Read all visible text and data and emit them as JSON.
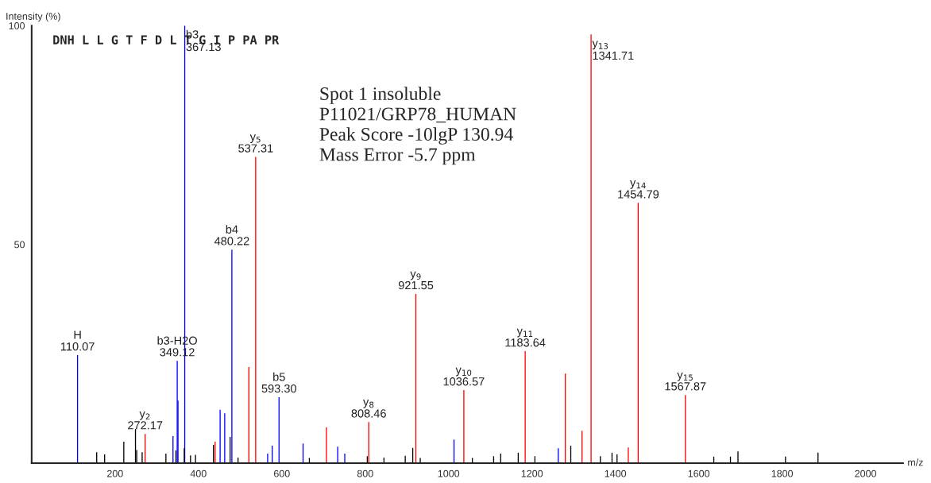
{
  "chart_data": {
    "type": "bar",
    "ylabel": "Intensity (%)",
    "xlabel": "m/z",
    "xlim": [
      0,
      2090
    ],
    "ylim": [
      0,
      100
    ],
    "xticks": [
      200,
      400,
      600,
      800,
      1000,
      1200,
      1400,
      1600,
      1800,
      2000
    ],
    "yticks": [
      50,
      100
    ],
    "grid": false,
    "legend": false,
    "series": [
      {
        "color": "#0000ff",
        "x": [
          110.07,
          339,
          349.12,
          351,
          367.13,
          452,
          463,
          480.22,
          566,
          577,
          593.3,
          651,
          734,
          751,
          1013,
          1263
        ],
        "values": [
          24.7,
          6.2,
          23.4,
          14.3,
          100,
          12.2,
          11.4,
          48.8,
          2.2,
          4,
          15.1,
          4.5,
          3.8,
          2.2,
          5.4,
          3.4
        ]
      },
      {
        "color": "#ff0000",
        "x": [
          272.17,
          440,
          521,
          537.31,
          707,
          808.46,
          921.55,
          1036.57,
          1183.64,
          1280,
          1320,
          1341.71,
          1431,
          1454.79,
          1567.87
        ],
        "values": [
          6.7,
          4.9,
          22,
          70,
          8.2,
          9.4,
          38.7,
          16.7,
          25.6,
          20.5,
          7.4,
          98,
          3.6,
          59.5,
          15.6
        ]
      },
      {
        "color": "#000000",
        "x": [
          156,
          175,
          221,
          249,
          252,
          265,
          322,
          346,
          366,
          381,
          393,
          436,
          476,
          495,
          666,
          805,
          845,
          896,
          914,
          932,
          1057,
          1108,
          1125,
          1167,
          1207,
          1293,
          1364,
          1392,
          1404,
          1636,
          1676,
          1694,
          1808,
          1886
        ],
        "values": [
          2.5,
          2,
          4.9,
          7.8,
          3,
          2.5,
          2.2,
          2.9,
          3.4,
          1.8,
          1.9,
          4.2,
          6,
          1.3,
          1.2,
          1.6,
          1.3,
          1.7,
          3.5,
          1.2,
          1.2,
          1.6,
          2.2,
          2.4,
          1.6,
          4,
          1.6,
          2.4,
          2,
          1.5,
          1.5,
          2.7,
          1.5,
          2.4
        ]
      }
    ],
    "annotations": [
      "DNH L L G T F D L T G I P PA PR",
      "Spot 1 insoluble\nP11021/GRP78_HUMAN\nPeak Score -10lgP 130.94\nMass Error -5.7 ppm",
      {
        "text": "H\n110.07",
        "x": 110.07,
        "y": 24.7
      },
      {
        "text": "y$_{2}$\n272.17",
        "x": 272.17,
        "y": 6.7
      },
      {
        "text": "b3-H2O\n349.12",
        "x": 349.12,
        "y": 23.4
      },
      {
        "text": "b3\n367.13",
        "x": 367.13,
        "y": 100
      },
      {
        "text": "b4\n480.22",
        "x": 480.22,
        "y": 48.8
      },
      {
        "text": "y$_{5}$\n537.31",
        "x": 537.31,
        "y": 70
      },
      {
        "text": "b5\n593.30",
        "x": 593.3,
        "y": 15.1
      },
      {
        "text": "y$_{8}$\n808.46",
        "x": 808.46,
        "y": 9.4
      },
      {
        "text": "y$_{9}$\n921.55",
        "x": 921.55,
        "y": 38.7
      },
      {
        "text": "y$_{10}$\n1036.57",
        "x": 1036.57,
        "y": 16.7
      },
      {
        "text": "y$_{11}$\n1183.64",
        "x": 1183.64,
        "y": 25.6
      },
      {
        "text": "y$_{13}$\n1341.71",
        "x": 1341.71,
        "y": 98
      },
      {
        "text": "y$_{14}$\n1454.79",
        "x": 1454.79,
        "y": 59.5
      },
      {
        "text": "y$_{15}$\n1567.87",
        "x": 1567.87,
        "y": 15.6
      }
    ]
  }
}
